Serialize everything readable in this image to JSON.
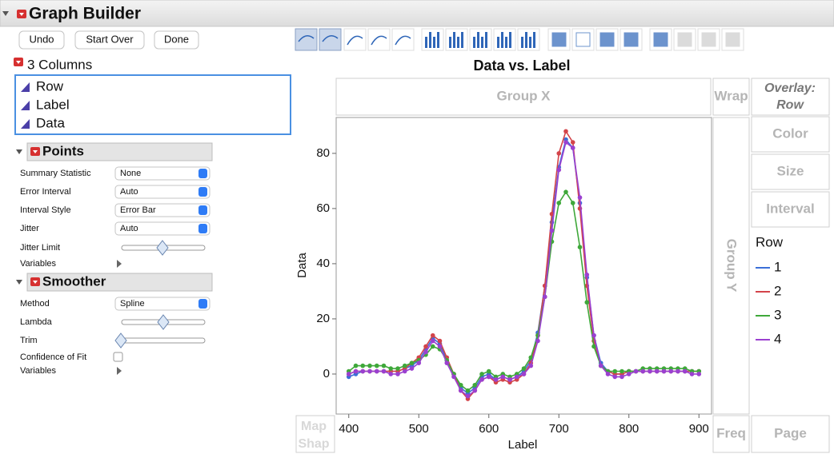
{
  "header": {
    "title": "Graph Builder"
  },
  "buttons": [
    "Undo",
    "Start Over",
    "Done"
  ],
  "columns": {
    "title": "3 Columns",
    "items": [
      "Row",
      "Label",
      "Data"
    ]
  },
  "points": {
    "title": "Points",
    "settings": [
      {
        "label": "Summary Statistic",
        "value": "None"
      },
      {
        "label": "Error Interval",
        "value": "Auto"
      },
      {
        "label": "Interval Style",
        "value": "Error Bar"
      },
      {
        "label": "Jitter",
        "value": "Auto"
      }
    ],
    "jitter_limit": "Jitter Limit",
    "variables": "Variables"
  },
  "smoother": {
    "title": "Smoother",
    "method": {
      "label": "Method",
      "value": "Spline"
    },
    "lambda": "Lambda",
    "trim": "Trim",
    "confidence": "Confidence of Fit",
    "variables": "Variables"
  },
  "zones": {
    "group_x": "Group X",
    "wrap": "Wrap",
    "overlay": [
      "Overlay:",
      "Row"
    ],
    "color": "Color",
    "size": "Size",
    "interval": "Interval",
    "group_y": "Group Y",
    "map_shape": [
      "Map",
      "Shap"
    ],
    "freq": "Freq",
    "page": "Page"
  },
  "chart_data": {
    "type": "line",
    "title": "Data vs. Label",
    "x_label": "Label",
    "y_label": "Data",
    "legend_title": "Row",
    "xlim": [
      382,
      918
    ],
    "ylim": [
      -14.5,
      93
    ],
    "xticks": [
      400,
      500,
      600,
      700,
      800,
      900
    ],
    "yticks": [
      0,
      20,
      40,
      60,
      80
    ],
    "x": [
      400,
      410,
      420,
      430,
      440,
      450,
      460,
      470,
      480,
      490,
      500,
      510,
      520,
      530,
      540,
      550,
      560,
      570,
      580,
      590,
      600,
      610,
      620,
      630,
      640,
      650,
      660,
      670,
      680,
      690,
      700,
      710,
      720,
      730,
      740,
      750,
      760,
      770,
      780,
      790,
      800,
      810,
      820,
      830,
      840,
      850,
      860,
      870,
      880,
      890,
      900
    ],
    "series": [
      {
        "name": "1",
        "color": "#3b6fd8",
        "values": [
          -1,
          0,
          1,
          1,
          1,
          1,
          1,
          1,
          2,
          3,
          5,
          9,
          13,
          11,
          5,
          0,
          -5,
          -7,
          -5,
          -1,
          0,
          -2,
          -1,
          -2,
          -1,
          1,
          5,
          15,
          32,
          55,
          75,
          85,
          82,
          62,
          35,
          14,
          4,
          1,
          0,
          0,
          1,
          1,
          1,
          1,
          1,
          1,
          1,
          1,
          1,
          1,
          1
        ]
      },
      {
        "name": "2",
        "color": "#d3444a",
        "values": [
          0,
          1,
          1,
          1,
          1,
          1,
          1,
          1,
          2,
          4,
          6,
          10,
          14,
          12,
          6,
          0,
          -6,
          -9,
          -6,
          -2,
          -1,
          -3,
          -2,
          -3,
          -2,
          0,
          4,
          14,
          32,
          58,
          80,
          88,
          84,
          60,
          32,
          12,
          3,
          1,
          0,
          0,
          1,
          1,
          1,
          1,
          1,
          1,
          1,
          1,
          1,
          1,
          1
        ]
      },
      {
        "name": "3",
        "color": "#3fa83a",
        "values": [
          1,
          3,
          3,
          3,
          3,
          3,
          2,
          2,
          3,
          4,
          5,
          7,
          10,
          9,
          5,
          0,
          -4,
          -6,
          -4,
          0,
          1,
          -1,
          0,
          -1,
          0,
          2,
          6,
          14,
          28,
          48,
          62,
          66,
          62,
          46,
          26,
          10,
          3,
          1,
          1,
          1,
          1,
          1,
          2,
          2,
          2,
          2,
          2,
          2,
          2,
          1,
          1
        ]
      },
      {
        "name": "4",
        "color": "#9b40d0",
        "values": [
          0,
          1,
          1,
          1,
          1,
          1,
          0,
          0,
          1,
          2,
          4,
          8,
          12,
          10,
          4,
          -1,
          -6,
          -8,
          -6,
          -2,
          -1,
          -2,
          -1,
          -2,
          -1,
          0,
          3,
          12,
          28,
          52,
          74,
          84,
          82,
          64,
          36,
          14,
          3,
          0,
          -1,
          -1,
          0,
          1,
          1,
          1,
          1,
          1,
          1,
          1,
          1,
          0,
          0
        ]
      }
    ]
  }
}
